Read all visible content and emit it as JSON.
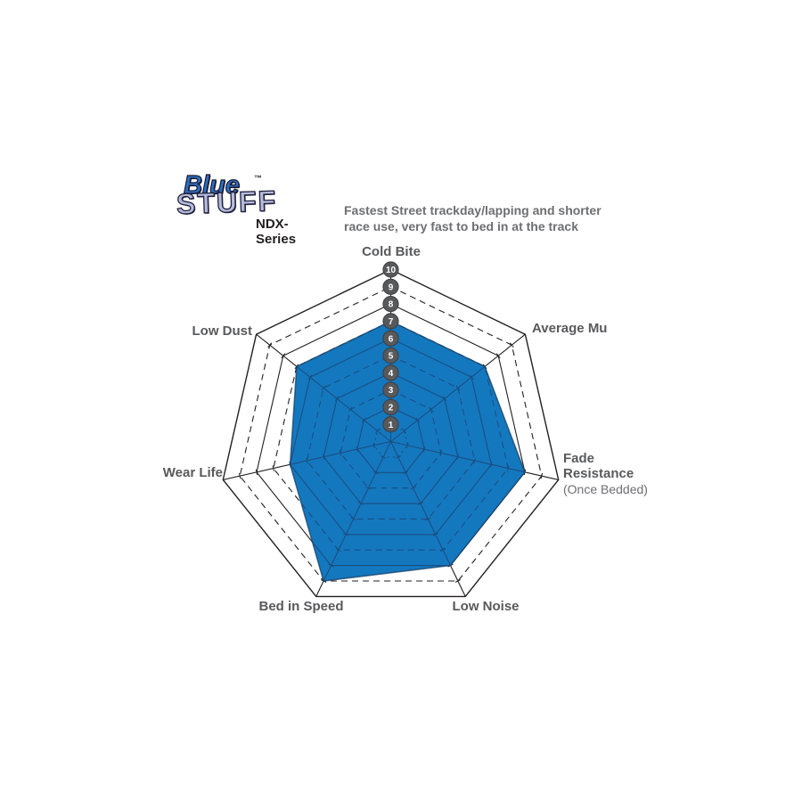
{
  "header": {
    "logo": {
      "word1": "Blue",
      "word2": "STUFF",
      "tm": "™",
      "series": "NDX-Series"
    },
    "subtitle": "Fastest Street trackday/lapping and shorter\nrace use, very fast to bed in at the track"
  },
  "chart_data": {
    "type": "radar",
    "title": "EBC BlueStuff NDX-Series brake pad performance ratings",
    "scale_min": 0,
    "scale_max": 10,
    "scale_labels": [
      "10",
      "9",
      "8",
      "7",
      "6",
      "5",
      "4",
      "3",
      "2",
      "1"
    ],
    "grid": "heptagon rings 1-10, even rings solid, odd rings dashed",
    "legend_position": "none",
    "axes": [
      {
        "label": "Cold Bite",
        "value": 7
      },
      {
        "label": "Average Mu",
        "value": 7
      },
      {
        "label": "Fade\nResistance",
        "sublabel": "(Once Bedded)",
        "value": 8
      },
      {
        "label": "Low Noise",
        "value": 8
      },
      {
        "label": "Bed in Speed",
        "value": 9
      },
      {
        "label": "Wear Life",
        "value": 6
      },
      {
        "label": "Low Dust",
        "value": 7
      }
    ],
    "colors": {
      "fill": "#1478bf",
      "fill_stroke": "#163f63",
      "grid_line": "#231f20",
      "grid_line_over_fill": "#1a4e80",
      "badge_bg": "#58595b",
      "badge_text": "#ffffff",
      "label_text": "#58595b"
    }
  }
}
